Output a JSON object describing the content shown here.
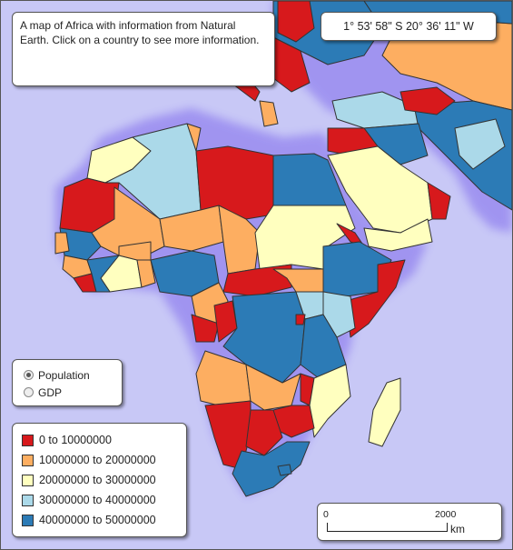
{
  "info": {
    "text": "A map of Africa with information from Natural Earth. Click on a country to see more information."
  },
  "coordinates": "1° 53' 58\" S 20° 36' 11\" W",
  "modes": [
    {
      "label": "Population",
      "selected": true
    },
    {
      "label": "GDP",
      "selected": false
    }
  ],
  "legend": [
    {
      "label": "0 to 10000000",
      "color": "#d7191c"
    },
    {
      "label": "10000000 to 20000000",
      "color": "#fdae61"
    },
    {
      "label": "20000000 to 30000000",
      "color": "#ffffbf"
    },
    {
      "label": "30000000 to 40000000",
      "color": "#abd9e9"
    },
    {
      "label": "40000000 to 50000000",
      "color": "#2c7bb6"
    }
  ],
  "scale": {
    "start": "0",
    "end": "2000",
    "unit": "km"
  },
  "colors": {
    "sea": "#c8c8f6",
    "border": "#333333"
  }
}
